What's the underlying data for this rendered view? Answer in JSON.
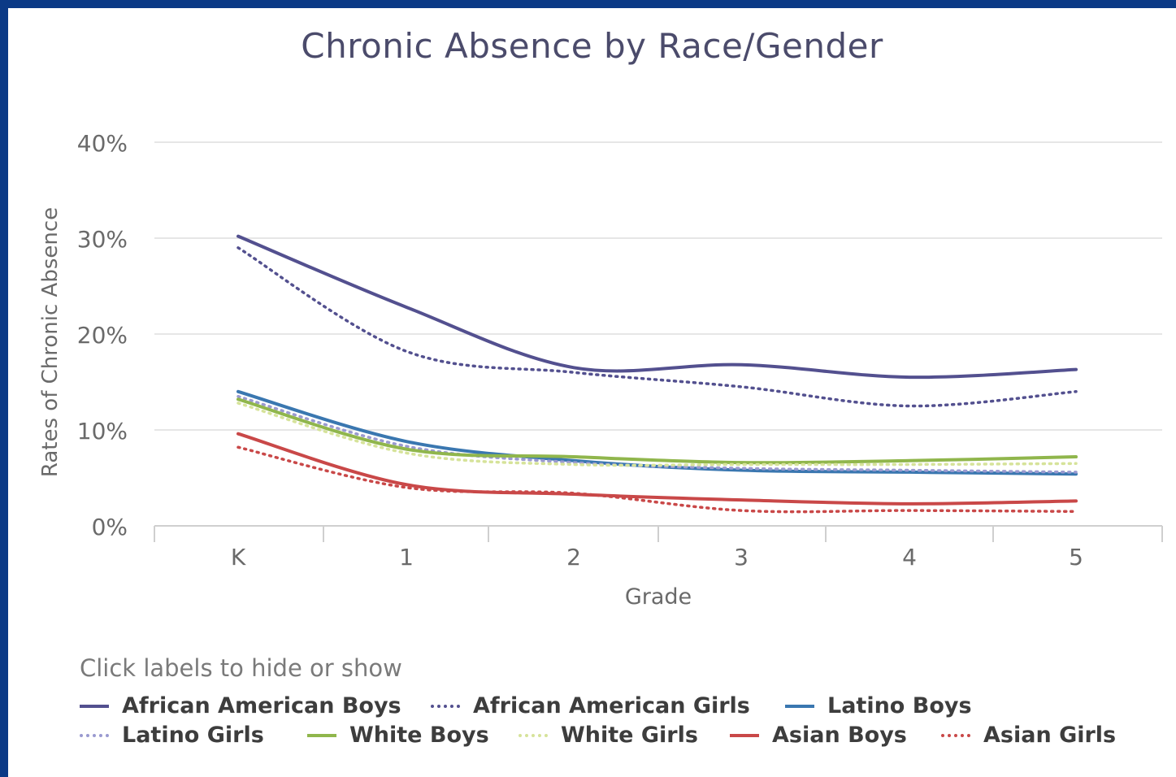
{
  "chart_data": {
    "type": "line",
    "title": "Chronic Absence by Race/Gender",
    "xlabel": "Grade",
    "ylabel": "Rates of Chronic Absence",
    "categories": [
      "K",
      "1",
      "2",
      "3",
      "4",
      "5"
    ],
    "ylim": [
      0,
      40
    ],
    "yticks": [
      0,
      10,
      20,
      30,
      40
    ],
    "ytick_labels": [
      "0%",
      "10%",
      "20%",
      "30%",
      "40%"
    ],
    "grid": true,
    "legend_position": "bottom",
    "legend_hint": "Click labels to hide or show",
    "series": [
      {
        "name": "African American Boys",
        "values": [
          30.2,
          22.8,
          16.5,
          16.8,
          15.5,
          16.3
        ],
        "color": "#53508f",
        "dash": "solid"
      },
      {
        "name": "African American Girls",
        "values": [
          29.0,
          18.2,
          16.0,
          14.5,
          12.5,
          14.0
        ],
        "color": "#53508f",
        "dash": "dotted"
      },
      {
        "name": "Latino Boys",
        "values": [
          14.0,
          8.8,
          6.8,
          5.8,
          5.6,
          5.4
        ],
        "color": "#3a77b0",
        "dash": "solid"
      },
      {
        "name": "Latino Girls",
        "values": [
          13.5,
          8.3,
          6.6,
          6.0,
          5.8,
          5.6
        ],
        "color": "#9a9ad0",
        "dash": "dotted"
      },
      {
        "name": "White Boys",
        "values": [
          13.2,
          8.0,
          7.2,
          6.6,
          6.8,
          7.2
        ],
        "color": "#90b64c",
        "dash": "solid"
      },
      {
        "name": "White Girls",
        "values": [
          12.8,
          7.6,
          6.4,
          6.4,
          6.4,
          6.5
        ],
        "color": "#d6e39a",
        "dash": "dotted"
      },
      {
        "name": "Asian Boys",
        "values": [
          9.6,
          4.3,
          3.3,
          2.7,
          2.3,
          2.6
        ],
        "color": "#c94848",
        "dash": "solid"
      },
      {
        "name": "Asian Girls",
        "values": [
          8.2,
          4.0,
          3.4,
          1.6,
          1.6,
          1.5
        ],
        "color": "#c94848",
        "dash": "dotted"
      }
    ]
  }
}
